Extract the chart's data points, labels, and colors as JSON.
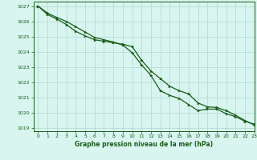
{
  "title": "Graphe pression niveau de la mer (hPa)",
  "background_color": "#d8f5f0",
  "plot_bg_color": "#d8f5f0",
  "grid_color": "#b0d8d0",
  "line_color": "#1a5c1a",
  "marker_color": "#1a5c1a",
  "xlim": [
    -0.5,
    23
  ],
  "ylim": [
    1018.8,
    1027.3
  ],
  "yticks": [
    1019,
    1020,
    1021,
    1022,
    1023,
    1024,
    1025,
    1026,
    1027
  ],
  "xticks": [
    0,
    1,
    2,
    3,
    4,
    5,
    6,
    7,
    8,
    9,
    10,
    11,
    12,
    13,
    14,
    15,
    16,
    17,
    18,
    19,
    20,
    21,
    22,
    23
  ],
  "series1_x": [
    0,
    1,
    2,
    3,
    4,
    5,
    6,
    7,
    8,
    9,
    10,
    11,
    12,
    13,
    14,
    15,
    16,
    17,
    18,
    19,
    20,
    21,
    22,
    23
  ],
  "series1_y": [
    1027.0,
    1026.55,
    1026.25,
    1026.0,
    1025.65,
    1025.3,
    1024.95,
    1024.8,
    1024.65,
    1024.45,
    1023.95,
    1023.15,
    1022.45,
    1021.45,
    1021.15,
    1020.95,
    1020.55,
    1020.15,
    1020.25,
    1020.25,
    1019.95,
    1019.75,
    1019.45,
    1019.25
  ],
  "series2_x": [
    0,
    1,
    2,
    3,
    4,
    5,
    6,
    7,
    8,
    9,
    10,
    11,
    12,
    13,
    14,
    15,
    16,
    17,
    18,
    19,
    20,
    21,
    22,
    23
  ],
  "series2_y": [
    1027.0,
    1026.45,
    1026.15,
    1025.8,
    1025.35,
    1025.05,
    1024.8,
    1024.7,
    1024.6,
    1024.5,
    1024.35,
    1023.45,
    1022.75,
    1022.25,
    1021.75,
    1021.45,
    1021.25,
    1020.65,
    1020.4,
    1020.35,
    1020.15,
    1019.85,
    1019.5,
    1019.2
  ]
}
